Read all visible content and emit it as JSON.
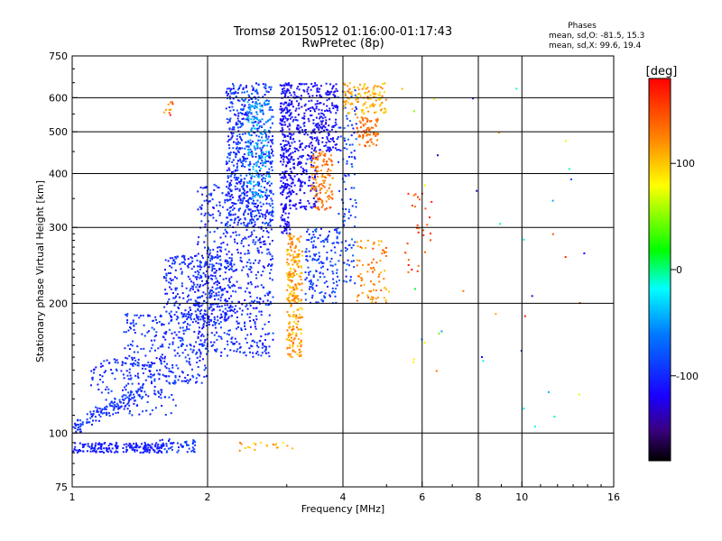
{
  "chart_data": {
    "type": "scatter",
    "title": "Tromsø 20150512 01:16:00-01:17:43",
    "subtitle": "RwPretec (8p)",
    "stats": {
      "title": "Phases",
      "line_o": "mean, sd,O: -81.5, 15.3",
      "line_x": "mean, sd,X:  99.6, 19.4"
    },
    "xlabel": "Frequency [MHz]",
    "ylabel": "Stationary phase Virtual Height [km]",
    "x_scale": "log",
    "y_scale": "log",
    "xlim": [
      1,
      16
    ],
    "ylim": [
      75,
      750
    ],
    "x_ticks": [
      1,
      2,
      4,
      6,
      8,
      10,
      16
    ],
    "x_tick_labels": [
      "1",
      "2",
      "4",
      "6",
      "8",
      "10",
      "16"
    ],
    "y_ticks": [
      75,
      100,
      200,
      300,
      400,
      500,
      600,
      750
    ],
    "y_tick_labels": [
      "75",
      "100",
      "200",
      "300",
      "400",
      "500",
      "600",
      "750"
    ],
    "x_gridlines": [
      2,
      4,
      6,
      8,
      10
    ],
    "y_gridlines": [
      100,
      200,
      300,
      400,
      500,
      600
    ],
    "grid": true,
    "colorbar": {
      "label": "[deg]",
      "range": [
        -180,
        180
      ],
      "ticks": [
        100,
        0,
        -100
      ],
      "tick_labels": [
        "100",
        "0",
        "-100"
      ]
    },
    "clusters": [
      {
        "f": [
          1.0,
          1.6
        ],
        "h": [
          90,
          95
        ],
        "phase": [
          -115,
          -95
        ],
        "count": 200,
        "kind": "line"
      },
      {
        "f": [
          1.55,
          1.9
        ],
        "h": [
          90,
          97
        ],
        "phase": [
          -110,
          -80
        ],
        "count": 50,
        "kind": "band"
      },
      {
        "f": [
          1.0,
          1.45
        ],
        "h": [
          102,
          125
        ],
        "phase": [
          -110,
          -80
        ],
        "count": 120,
        "kind": "edge"
      },
      {
        "f": [
          1.1,
          1.7
        ],
        "h": [
          110,
          150
        ],
        "phase": [
          -115,
          -80
        ],
        "count": 150,
        "kind": "band"
      },
      {
        "f": [
          1.3,
          2.0
        ],
        "h": [
          130,
          190
        ],
        "phase": [
          -115,
          -80
        ],
        "count": 300,
        "kind": "band"
      },
      {
        "f": [
          1.6,
          2.3
        ],
        "h": [
          180,
          260
        ],
        "phase": [
          -115,
          -85
        ],
        "count": 300,
        "kind": "band"
      },
      {
        "f": [
          1.9,
          2.8
        ],
        "h": [
          150,
          380
        ],
        "phase": [
          -120,
          -80
        ],
        "count": 600,
        "kind": "band"
      },
      {
        "f": [
          2.2,
          2.8
        ],
        "h": [
          300,
          650
        ],
        "phase": [
          -120,
          -70
        ],
        "count": 600,
        "kind": "band"
      },
      {
        "f": [
          2.45,
          2.75
        ],
        "h": [
          350,
          600
        ],
        "phase": [
          -60,
          -30
        ],
        "count": 150,
        "kind": "band"
      },
      {
        "f": [
          2.9,
          3.05
        ],
        "h": [
          290,
          650
        ],
        "phase": [
          -130,
          -100
        ],
        "count": 250,
        "kind": "band"
      },
      {
        "f": [
          3.05,
          3.5
        ],
        "h": [
          330,
          650
        ],
        "phase": [
          -130,
          -100
        ],
        "count": 300,
        "kind": "band"
      },
      {
        "f": [
          3.5,
          3.9
        ],
        "h": [
          450,
          650
        ],
        "phase": [
          -130,
          -100
        ],
        "count": 150,
        "kind": "band"
      },
      {
        "f": [
          3.0,
          3.25
        ],
        "h": [
          150,
          290
        ],
        "phase": [
          90,
          140
        ],
        "count": 250,
        "kind": "band"
      },
      {
        "f": [
          3.4,
          3.8
        ],
        "h": [
          330,
          450
        ],
        "phase": [
          110,
          150
        ],
        "count": 120,
        "kind": "band"
      },
      {
        "f": [
          3.3,
          3.9
        ],
        "h": [
          200,
          300
        ],
        "phase": [
          -110,
          -70
        ],
        "count": 150,
        "kind": "band"
      },
      {
        "f": [
          3.9,
          4.3
        ],
        "h": [
          220,
          650
        ],
        "phase": [
          -110,
          -60
        ],
        "count": 120,
        "kind": "band"
      },
      {
        "f": [
          4.0,
          5.0
        ],
        "h": [
          550,
          650
        ],
        "phase": [
          90,
          130
        ],
        "count": 120,
        "kind": "band"
      },
      {
        "f": [
          4.3,
          4.8
        ],
        "h": [
          460,
          540
        ],
        "phase": [
          120,
          150
        ],
        "count": 80,
        "kind": "band"
      },
      {
        "f": [
          4.3,
          5.0
        ],
        "h": [
          200,
          280
        ],
        "phase": [
          100,
          150
        ],
        "count": 80,
        "kind": "band"
      },
      {
        "f": [
          5.5,
          6.3
        ],
        "h": [
          230,
          360
        ],
        "phase": [
          130,
          170
        ],
        "count": 30,
        "kind": "band"
      },
      {
        "f": [
          2.3,
          3.2
        ],
        "h": [
          91,
          95
        ],
        "phase": [
          80,
          140
        ],
        "count": 20,
        "kind": "band"
      },
      {
        "f": [
          1.6,
          1.7
        ],
        "h": [
          540,
          590
        ],
        "phase": [
          100,
          170
        ],
        "count": 10,
        "kind": "band"
      },
      {
        "f": [
          5.0,
          14.0
        ],
        "h": [
          100,
          650
        ],
        "phase": [
          -150,
          170
        ],
        "count": 40,
        "kind": "sparse"
      }
    ]
  }
}
